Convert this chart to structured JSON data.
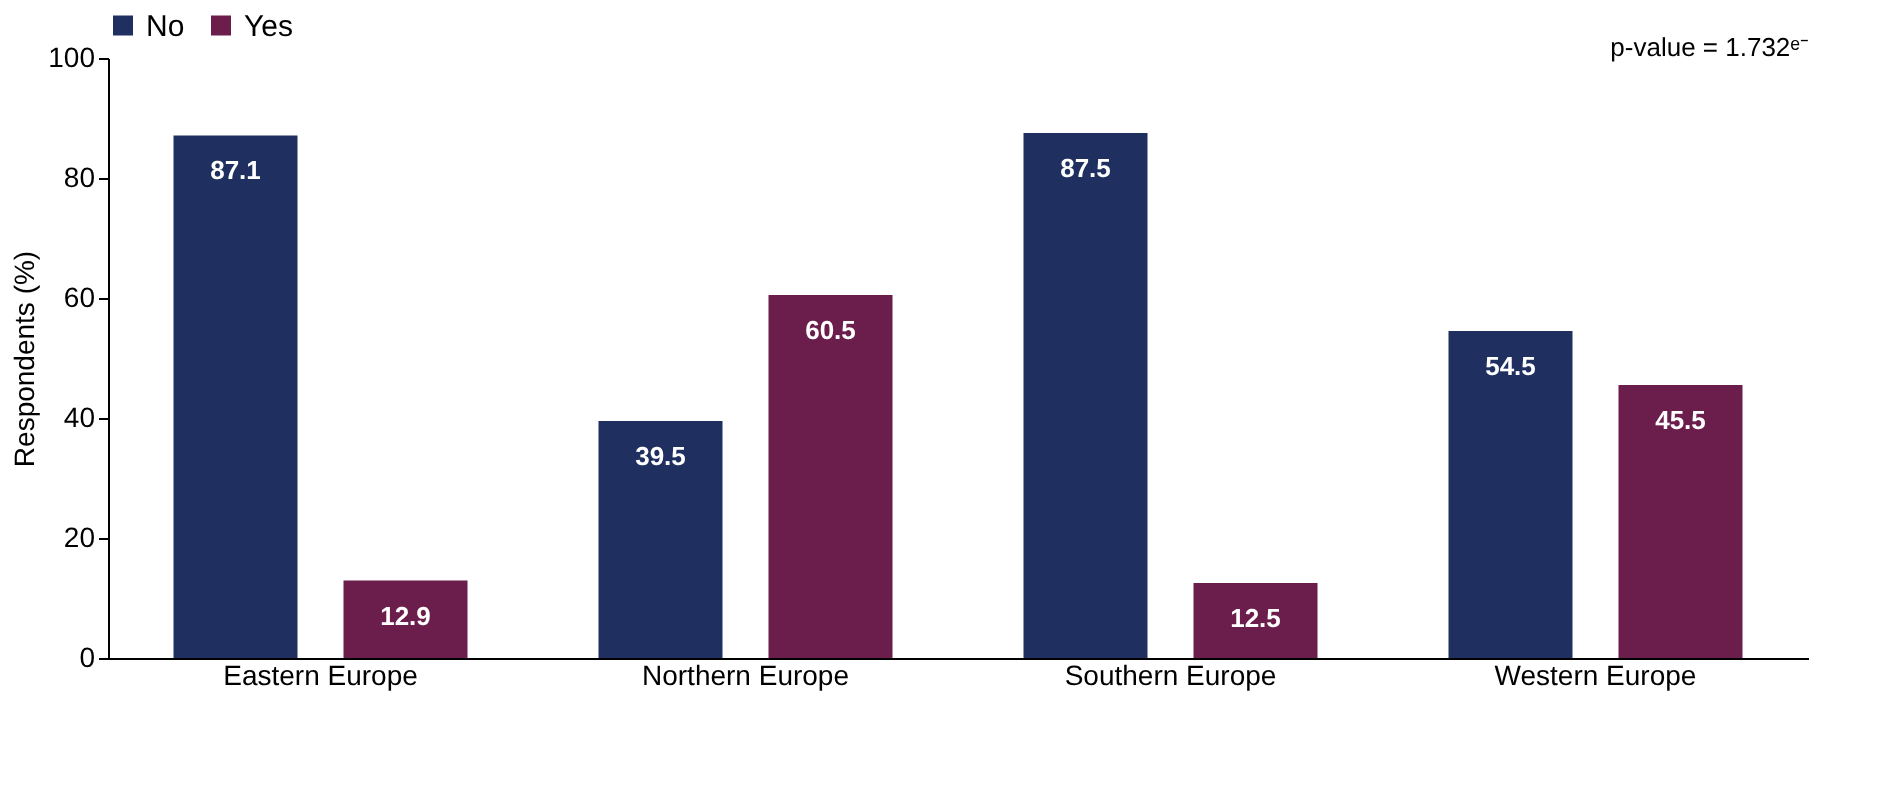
{
  "chart_data": {
    "type": "bar",
    "ylabel": "Respondents (%)",
    "categories": [
      "Eastern Europe",
      "Northern Europe",
      "Southern Europe",
      "Western Europe"
    ],
    "series": [
      {
        "name": "No",
        "color": "#1f3060",
        "values": [
          87.1,
          39.5,
          87.5,
          54.5
        ]
      },
      {
        "name": "Yes",
        "color": "#6b1d4c",
        "values": [
          12.9,
          60.5,
          12.5,
          45.5
        ]
      }
    ],
    "ylim": [
      0,
      100
    ],
    "yticks": [
      0,
      20,
      40,
      60,
      80,
      100
    ],
    "data_labels": true,
    "legend": "top",
    "grid": false,
    "annotations": [
      "p-value = 1.732ᵉ⁻"
    ]
  }
}
